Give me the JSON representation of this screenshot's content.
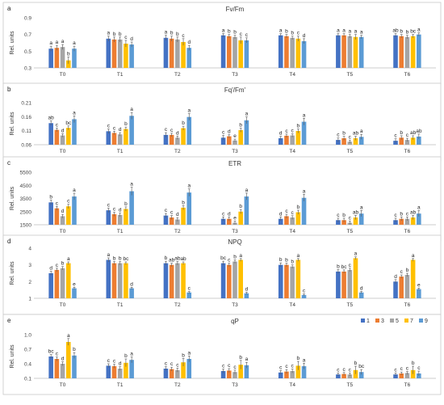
{
  "colors": [
    "#4472C4",
    "#ED7D31",
    "#A5A5A5",
    "#FFC000",
    "#5B9BD5"
  ],
  "legend": {
    "placement": "top-right",
    "entries": [
      "1",
      "3",
      "5",
      "7",
      "9"
    ]
  },
  "chart_data": [
    {
      "type": "bar",
      "panel": "a",
      "title": "Fv/Fm",
      "ylabel": "Rel. units",
      "ylim": [
        0.3,
        0.9
      ],
      "yticks": [
        "0.3",
        "0.5",
        "0.7",
        "0.9"
      ],
      "categories": [
        "T0",
        "T1",
        "T2",
        "T3",
        "T4",
        "T5",
        "T6"
      ],
      "series": [
        {
          "name": "1",
          "values": [
            0.53,
            0.65,
            0.66,
            0.69,
            0.69,
            0.69,
            0.69
          ],
          "errors": [
            0.03,
            0.03,
            0.03,
            0.02,
            0.02,
            0.02,
            0.02
          ],
          "letters": [
            "a",
            "a",
            "a",
            "a",
            "a",
            "a",
            "ab"
          ]
        },
        {
          "name": "3",
          "values": [
            0.54,
            0.64,
            0.65,
            0.68,
            0.68,
            0.69,
            0.68
          ],
          "errors": [
            0.03,
            0.03,
            0.03,
            0.02,
            0.02,
            0.02,
            0.02
          ],
          "letters": [
            "a",
            "b",
            "b",
            "b",
            "b",
            "a",
            "b"
          ]
        },
        {
          "name": "5",
          "values": [
            0.55,
            0.64,
            0.64,
            0.67,
            0.66,
            0.68,
            0.67
          ],
          "errors": [
            0.03,
            0.03,
            0.03,
            0.02,
            0.02,
            0.02,
            0.02
          ],
          "letters": [
            "a",
            "b",
            "b",
            "b",
            "b",
            "a",
            "b"
          ]
        },
        {
          "name": "7",
          "values": [
            0.39,
            0.59,
            0.61,
            0.63,
            0.65,
            0.67,
            0.68
          ],
          "errors": [
            0.04,
            0.04,
            0.04,
            0.04,
            0.03,
            0.03,
            0.02
          ],
          "letters": [
            "b",
            "c",
            "c",
            "c",
            "c",
            "a",
            "bc"
          ]
        },
        {
          "name": "9",
          "values": [
            0.53,
            0.58,
            0.54,
            0.63,
            0.62,
            0.67,
            0.7
          ],
          "errors": [
            0.03,
            0.03,
            0.03,
            0.03,
            0.03,
            0.02,
            0.02
          ],
          "letters": [
            "a",
            "d",
            "d",
            "c",
            "d",
            "a",
            "a"
          ]
        }
      ]
    },
    {
      "type": "bar",
      "panel": "b",
      "title": "Fq'/Fm'",
      "ylabel": "Rel. units",
      "ylim": [
        0.06,
        0.21
      ],
      "yticks": [
        "0.06",
        "0.11",
        "0.16",
        "0.21"
      ],
      "categories": [
        "T0",
        "T1",
        "T2",
        "T3",
        "T4",
        "T5",
        "T6"
      ],
      "series": [
        {
          "name": "1",
          "values": [
            0.137,
            0.108,
            0.095,
            0.085,
            0.083,
            0.077,
            0.074
          ],
          "errors": [
            0.008,
            0.008,
            0.008,
            0.008,
            0.007,
            0.007,
            0.007
          ],
          "letters": [
            "ab",
            "c",
            "c",
            "c",
            "d",
            "c",
            "c"
          ]
        },
        {
          "name": "3",
          "values": [
            0.113,
            0.102,
            0.095,
            0.09,
            0.092,
            0.083,
            0.085
          ],
          "errors": [
            0.006,
            0.006,
            0.006,
            0.006,
            0.006,
            0.007,
            0.007
          ],
          "letters": [
            "c",
            "c",
            "c",
            "d",
            "c",
            "b",
            "b"
          ]
        },
        {
          "name": "5",
          "values": [
            0.093,
            0.097,
            0.085,
            0.075,
            0.093,
            0.071,
            0.077
          ],
          "errors": [
            0.006,
            0.006,
            0.006,
            0.005,
            0.006,
            0.005,
            0.006
          ],
          "letters": [
            "d",
            "d",
            "d",
            "e",
            "c",
            "c",
            "c"
          ]
        },
        {
          "name": "7",
          "values": [
            0.12,
            0.116,
            0.119,
            0.112,
            0.109,
            0.083,
            0.085
          ],
          "errors": [
            0.007,
            0.007,
            0.007,
            0.007,
            0.007,
            0.007,
            0.007
          ],
          "letters": [
            "bc",
            "b",
            "b",
            "b",
            "b",
            "ab",
            "ab"
          ]
        },
        {
          "name": "9",
          "values": [
            0.151,
            0.163,
            0.159,
            0.147,
            0.142,
            0.088,
            0.089
          ],
          "errors": [
            0.012,
            0.012,
            0.012,
            0.012,
            0.012,
            0.009,
            0.009
          ],
          "letters": [
            "a",
            "a",
            "a",
            "a",
            "a",
            "a",
            "ab"
          ]
        }
      ]
    },
    {
      "type": "bar",
      "panel": "c",
      "title": "ETR",
      "ylabel": "Rel. units",
      "ylim": [
        1500,
        5500
      ],
      "yticks": [
        "1500",
        "2500",
        "3500",
        "4500",
        "5500"
      ],
      "categories": [
        "T0",
        "T1",
        "T2",
        "T3",
        "T4",
        "T5",
        "T6"
      ],
      "series": [
        {
          "name": "1",
          "values": [
            3200,
            2600,
            2200,
            1950,
            1950,
            1850,
            1850
          ],
          "errors": [
            180,
            160,
            160,
            150,
            150,
            150,
            150
          ],
          "letters": [
            "b",
            "c",
            "c",
            "c",
            "d",
            "c",
            "c"
          ]
        },
        {
          "name": "3",
          "values": [
            2750,
            2300,
            2050,
            1950,
            2150,
            1850,
            1950
          ],
          "errors": [
            150,
            150,
            150,
            150,
            150,
            150,
            150
          ],
          "letters": [
            "c",
            "c",
            "c",
            "d",
            "c",
            "b",
            "b"
          ]
        },
        {
          "name": "5",
          "values": [
            2150,
            2250,
            1900,
            1650,
            2050,
            1650,
            1950
          ],
          "errors": [
            140,
            140,
            140,
            130,
            140,
            130,
            140
          ],
          "letters": [
            "d",
            "d",
            "d",
            "e",
            "c",
            "c",
            "c"
          ]
        },
        {
          "name": "7",
          "values": [
            2900,
            2700,
            2800,
            2500,
            2450,
            2050,
            2050
          ],
          "errors": [
            160,
            160,
            160,
            160,
            160,
            160,
            160
          ],
          "letters": [
            "c",
            "b",
            "b",
            "b",
            "b",
            "ab",
            "ab"
          ]
        },
        {
          "name": "9",
          "values": [
            3650,
            4050,
            3950,
            3650,
            3550,
            2350,
            2350
          ],
          "errors": [
            250,
            300,
            280,
            260,
            260,
            230,
            230
          ],
          "letters": [
            "a",
            "a",
            "a",
            "a",
            "a",
            "a",
            "a"
          ]
        }
      ]
    },
    {
      "type": "bar",
      "panel": "d",
      "title": "NPQ",
      "ylabel": "Rel. units",
      "ylim": [
        1,
        4
      ],
      "yticks": [
        "1",
        "2",
        "3",
        "4"
      ],
      "categories": [
        "T0",
        "T1",
        "T2",
        "T3",
        "T4",
        "T5",
        "T6"
      ],
      "series": [
        {
          "name": "1",
          "values": [
            2.5,
            3.3,
            3.1,
            3.1,
            3.0,
            2.6,
            2.0
          ],
          "errors": [
            0.12,
            0.12,
            0.12,
            0.12,
            0.12,
            0.12,
            0.12
          ],
          "letters": [
            "d",
            "a",
            "b",
            "bc",
            "b",
            "b",
            "d"
          ]
        },
        {
          "name": "3",
          "values": [
            2.7,
            3.1,
            3.0,
            3.0,
            3.0,
            2.6,
            2.3
          ],
          "errors": [
            0.1,
            0.1,
            0.1,
            0.1,
            0.1,
            0.1,
            0.1
          ],
          "letters": [
            "c",
            "b",
            "ab",
            "c",
            "b",
            "bc",
            "c"
          ]
        },
        {
          "name": "5",
          "values": [
            2.8,
            3.1,
            3.1,
            3.2,
            2.9,
            2.7,
            2.4
          ],
          "errors": [
            0.1,
            0.1,
            0.1,
            0.1,
            0.1,
            0.1,
            0.1
          ],
          "letters": [
            "b",
            "b",
            "ab",
            "b",
            "b",
            "c",
            "b"
          ]
        },
        {
          "name": "7",
          "values": [
            3.1,
            3.1,
            3.1,
            3.3,
            3.3,
            3.4,
            3.3
          ],
          "errors": [
            0.08,
            0.08,
            0.08,
            0.08,
            0.08,
            0.08,
            0.08
          ],
          "letters": [
            "a",
            "bc",
            "ab",
            "a",
            "a",
            "a",
            "a"
          ]
        },
        {
          "name": "9",
          "values": [
            1.6,
            1.6,
            1.35,
            1.3,
            1.2,
            1.35,
            1.55
          ],
          "errors": [
            0.06,
            0.06,
            0.06,
            0.06,
            0.06,
            0.06,
            0.06
          ],
          "letters": [
            "e",
            "d",
            "c",
            "d",
            "c",
            "d",
            "e"
          ]
        }
      ]
    },
    {
      "type": "bar",
      "panel": "e",
      "title": "qP",
      "ylabel": "Rel. units",
      "ylim": [
        0.1,
        1.0
      ],
      "yticks": [
        "0.1",
        "0.4",
        "0.7",
        "1.0"
      ],
      "categories": [
        "T0",
        "T1",
        "T2",
        "T3",
        "T4",
        "T5",
        "T6"
      ],
      "series": [
        {
          "name": "1",
          "values": [
            0.55,
            0.36,
            0.3,
            0.25,
            0.22,
            0.18,
            0.18
          ],
          "errors": [
            0.04,
            0.04,
            0.04,
            0.04,
            0.04,
            0.03,
            0.03
          ],
          "letters": [
            "bc",
            "c",
            "c",
            "c",
            "c",
            "c",
            "c"
          ]
        },
        {
          "name": "3",
          "values": [
            0.5,
            0.35,
            0.29,
            0.26,
            0.24,
            0.19,
            0.2
          ],
          "errors": [
            0.04,
            0.04,
            0.04,
            0.04,
            0.04,
            0.03,
            0.03
          ],
          "letters": [
            "c",
            "c",
            "c",
            "c",
            "c",
            "c",
            "c"
          ]
        },
        {
          "name": "5",
          "values": [
            0.4,
            0.3,
            0.27,
            0.23,
            0.25,
            0.18,
            0.21
          ],
          "errors": [
            0.04,
            0.04,
            0.04,
            0.04,
            0.04,
            0.03,
            0.03
          ],
          "letters": [
            "d",
            "d",
            "c",
            "c",
            "c",
            "c",
            "c"
          ]
        },
        {
          "name": "7",
          "values": [
            0.85,
            0.42,
            0.43,
            0.38,
            0.36,
            0.27,
            0.27
          ],
          "errors": [
            0.07,
            0.08,
            0.08,
            0.09,
            0.09,
            0.08,
            0.08
          ],
          "letters": [
            "a",
            "b",
            "b",
            "b",
            "b",
            "b",
            "b"
          ]
        },
        {
          "name": "9",
          "values": [
            0.57,
            0.48,
            0.5,
            0.37,
            0.35,
            0.23,
            0.2
          ],
          "errors": [
            0.06,
            0.06,
            0.06,
            0.06,
            0.06,
            0.05,
            0.05
          ],
          "letters": [
            "b",
            "a",
            "a",
            "a",
            "a",
            "bc",
            "c"
          ]
        }
      ]
    }
  ]
}
